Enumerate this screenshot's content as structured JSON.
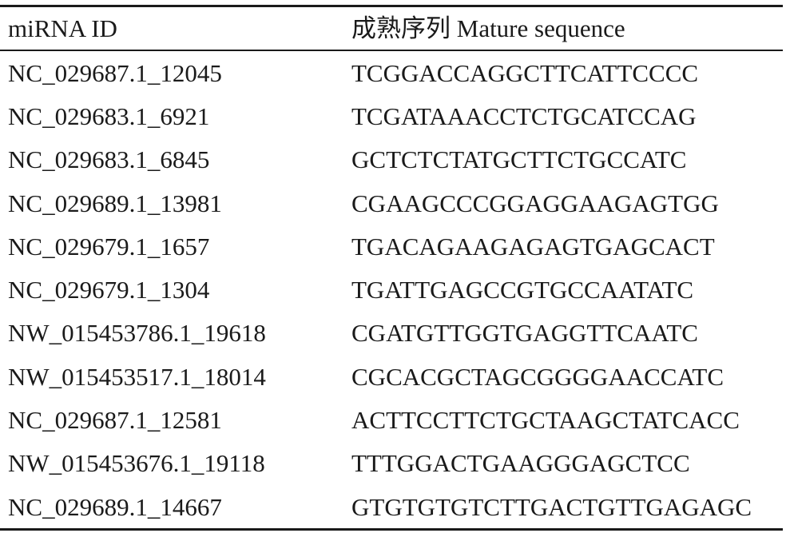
{
  "table": {
    "headers": {
      "id": "miRNA ID",
      "sequence": "成熟序列 Mature sequence"
    },
    "rows": [
      {
        "id": "NC_029687.1_12045",
        "sequence": "TCGGACCAGGCTTCATTCCCC"
      },
      {
        "id": "NC_029683.1_6921",
        "sequence": "TCGATAAACCTCTGCATCCAG"
      },
      {
        "id": "NC_029683.1_6845",
        "sequence": "GCTCTCTATGCTTCTGCCATC"
      },
      {
        "id": "NC_029689.1_13981",
        "sequence": "CGAAGCCCGGAGGAAGAGTGG"
      },
      {
        "id": "NC_029679.1_1657",
        "sequence": "TGACAGAAGAGAGTGAGCACT"
      },
      {
        "id": "NC_029679.1_1304",
        "sequence": "TGATTGAGCCGTGCCAATATC"
      },
      {
        "id": "NW_015453786.1_19618",
        "sequence": "CGATGTTGGTGAGGTTCAATC"
      },
      {
        "id": "NW_015453517.1_18014",
        "sequence": "CGCACGCTAGCGGGGAACCATC"
      },
      {
        "id": "NC_029687.1_12581",
        "sequence": "ACTTCCTTCTGCTAAGCTATCACC"
      },
      {
        "id": "NW_015453676.1_19118",
        "sequence": "TTTGGACTGAAGGGAGCTCC"
      },
      {
        "id": "NC_029689.1_14667",
        "sequence": "GTGTGTGTCTTGACTGTTGAGAGC"
      }
    ]
  }
}
